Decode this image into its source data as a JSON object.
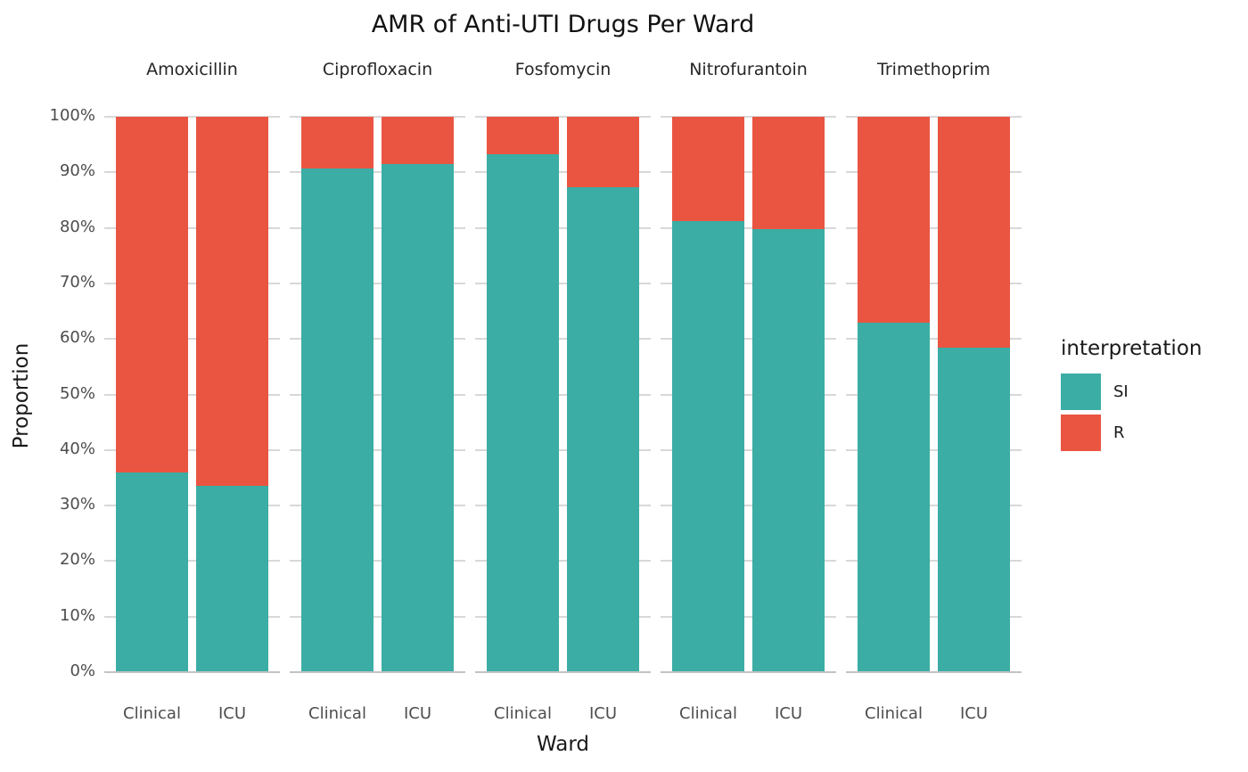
{
  "title": "AMR of Anti-UTI Drugs Per Ward",
  "axes": {
    "y_title": "Proportion",
    "x_title": "Ward",
    "y_tick_labels": [
      "0%",
      "10%",
      "20%",
      "30%",
      "40%",
      "50%",
      "60%",
      "70%",
      "80%",
      "90%",
      "100%"
    ],
    "x_tick_labels": [
      "Clinical",
      "ICU"
    ]
  },
  "legend": {
    "title": "interpretation",
    "items": [
      {
        "label": "SI",
        "color": "#3BADA4"
      },
      {
        "label": "R",
        "color": "#EA5541"
      }
    ]
  },
  "colors": {
    "si": "#3BADA4",
    "r": "#EA5541",
    "gridline": "#d8d8d8",
    "axis_line": "#c3c3c3",
    "tick_text": "#4d4d4d",
    "title_text": "#121212"
  },
  "chart_data": {
    "type": "bar",
    "stacked": true,
    "normalized": "percent",
    "title": "AMR of Anti-UTI Drugs Per Ward",
    "xlabel": "Ward",
    "ylabel": "Proportion",
    "ylim": [
      0,
      100
    ],
    "y_tick_step": 10,
    "grid": "horizontal-major",
    "legend_position": "right",
    "facets": [
      "Amoxicillin",
      "Ciprofloxacin",
      "Fosfomycin",
      "Nitrofurantoin",
      "Trimethoprim"
    ],
    "categories": [
      "Clinical",
      "ICU"
    ],
    "series": [
      {
        "name": "SI",
        "color": "#3BADA4",
        "values": {
          "Amoxicillin": [
            36.0,
            33.5
          ],
          "Ciprofloxacin": [
            90.7,
            91.5
          ],
          "Fosfomycin": [
            93.2,
            87.4
          ],
          "Nitrofurantoin": [
            81.2,
            79.7
          ],
          "Trimethoprim": [
            63.0,
            58.4
          ]
        }
      },
      {
        "name": "R",
        "color": "#EA5541",
        "values": {
          "Amoxicillin": [
            64.0,
            66.5
          ],
          "Ciprofloxacin": [
            9.3,
            8.5
          ],
          "Fosfomycin": [
            6.8,
            12.6
          ],
          "Nitrofurantoin": [
            18.8,
            20.3
          ],
          "Trimethoprim": [
            37.0,
            41.6
          ]
        }
      }
    ]
  }
}
